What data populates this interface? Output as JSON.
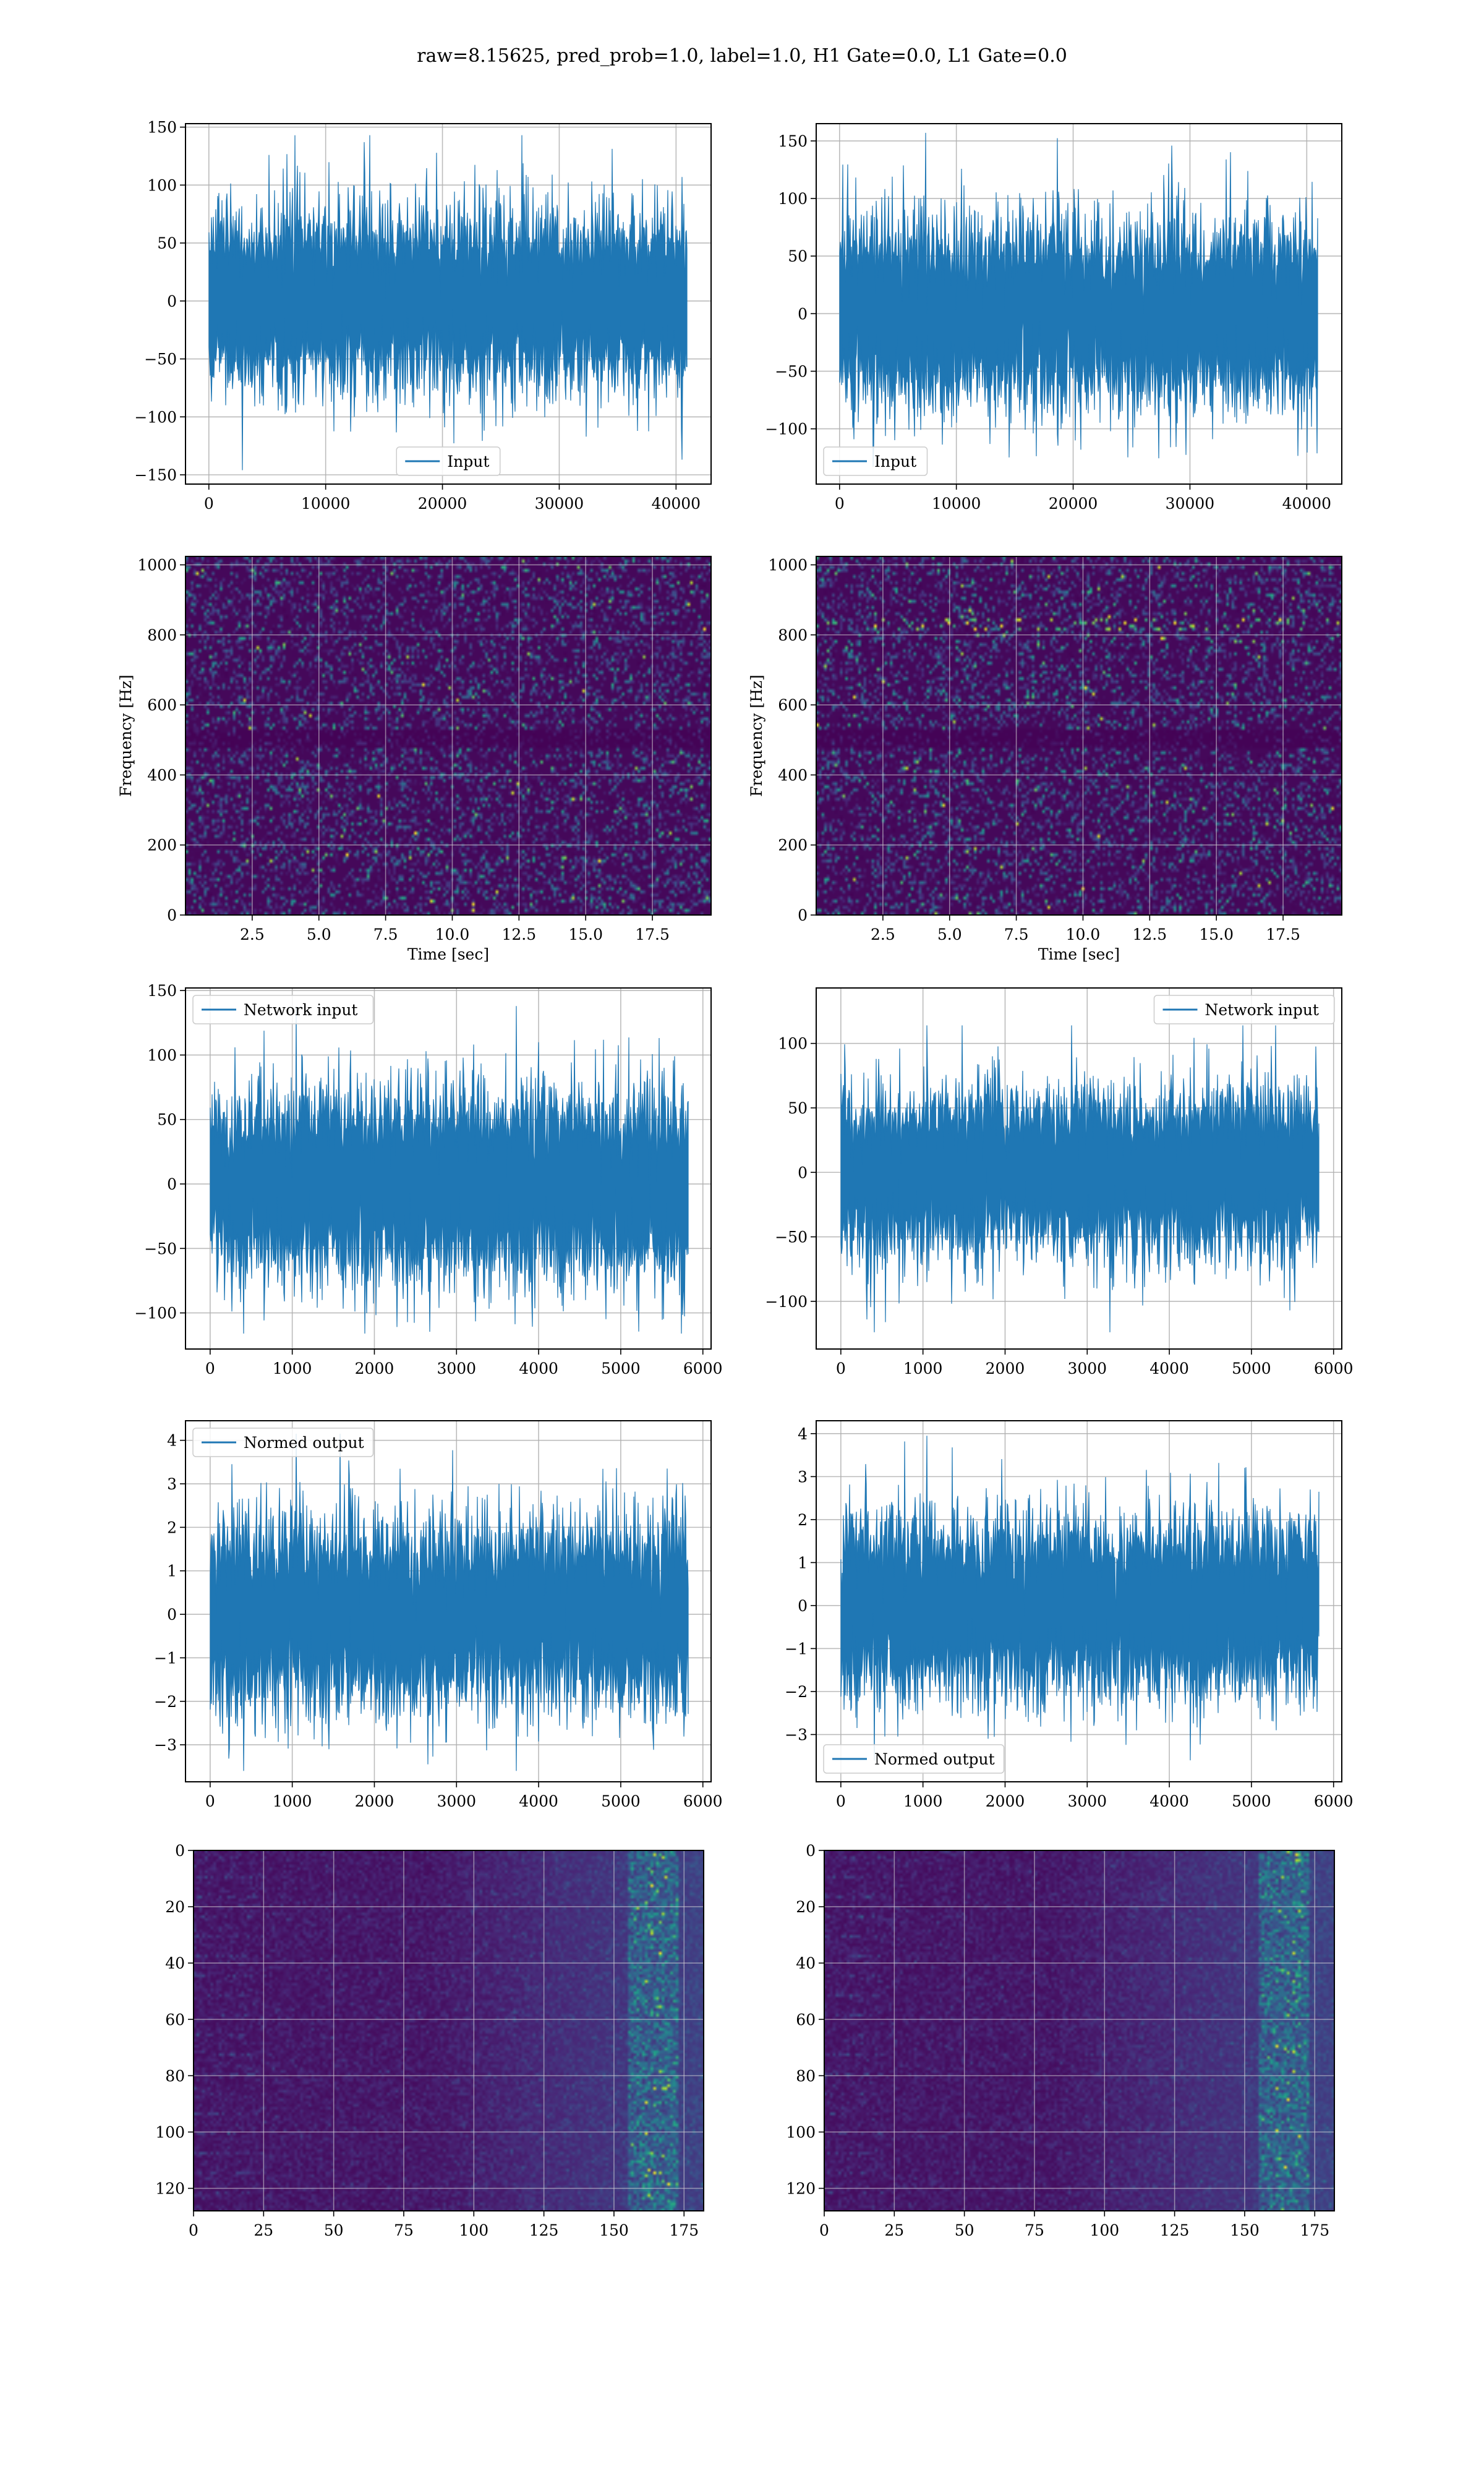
{
  "suptitle": "raw=8.15625, pred_prob=1.0, label=1.0, H1 Gate=0.0, L1 Gate=0.0",
  "colors": {
    "line": "#1f77b4",
    "viridis_low": "#440154",
    "viridis_mid": "#21918c",
    "viridis_high": "#fde725"
  },
  "chart_data": [
    {
      "id": "input-h1",
      "type": "line",
      "series": [
        {
          "name": "Input",
          "n_samples": 40960,
          "amplitude_range": [
            -146,
            143
          ]
        }
      ],
      "xlim": [
        -2000,
        43000
      ],
      "ylim": [
        -158,
        153
      ],
      "xticks": [
        0,
        10000,
        20000,
        30000,
        40000
      ],
      "xticklabels": [
        "0",
        "10000",
        "20000",
        "30000",
        "40000"
      ],
      "yticks": [
        -150,
        -100,
        -50,
        0,
        50,
        100,
        150
      ],
      "yticklabels": [
        "−150",
        "−100",
        "−50",
        "0",
        "50",
        "100",
        "150"
      ],
      "xlabel": "",
      "ylabel": "",
      "legend": "lower center",
      "grid": true
    },
    {
      "id": "input-l1",
      "type": "line",
      "series": [
        {
          "name": "Input",
          "n_samples": 40960,
          "amplitude_range": [
            -133,
            157
          ]
        }
      ],
      "xlim": [
        -2000,
        43000
      ],
      "ylim": [
        -148,
        165
      ],
      "xticks": [
        0,
        10000,
        20000,
        30000,
        40000
      ],
      "xticklabels": [
        "0",
        "10000",
        "20000",
        "30000",
        "40000"
      ],
      "yticks": [
        -100,
        -50,
        0,
        50,
        100,
        150
      ],
      "yticklabels": [
        "−100",
        "−50",
        "0",
        "50",
        "100",
        "150"
      ],
      "xlabel": "",
      "ylabel": "",
      "legend": "lower left",
      "grid": true
    },
    {
      "id": "spec-h1",
      "type": "heatmap",
      "colormap": "viridis",
      "xlim": [
        0,
        19.7
      ],
      "ylim": [
        0,
        1024
      ],
      "xticks": [
        2.5,
        5.0,
        7.5,
        10.0,
        12.5,
        15.0,
        17.5
      ],
      "xticklabels": [
        "2.5",
        "5.0",
        "7.5",
        "10.0",
        "12.5",
        "15.0",
        "17.5"
      ],
      "yticks": [
        0,
        200,
        400,
        600,
        800,
        1000
      ],
      "yticklabels": [
        "0",
        "200",
        "400",
        "600",
        "800",
        "1000"
      ],
      "xlabel": "Time [sec]",
      "ylabel": "Frequency [Hz]",
      "grid": true
    },
    {
      "id": "spec-l1",
      "type": "heatmap",
      "colormap": "viridis",
      "xlim": [
        0,
        19.7
      ],
      "ylim": [
        0,
        1024
      ],
      "xticks": [
        2.5,
        5.0,
        7.5,
        10.0,
        12.5,
        15.0,
        17.5
      ],
      "xticklabels": [
        "2.5",
        "5.0",
        "7.5",
        "10.0",
        "12.5",
        "15.0",
        "17.5"
      ],
      "yticks": [
        0,
        200,
        400,
        600,
        800,
        1000
      ],
      "yticklabels": [
        "0",
        "200",
        "400",
        "600",
        "800",
        "1000"
      ],
      "xlabel": "Time [sec]",
      "ylabel": "Frequency [Hz]",
      "grid": true
    },
    {
      "id": "netin-h1",
      "type": "line",
      "series": [
        {
          "name": "Network input",
          "n_samples": 5824,
          "amplitude_range": [
            -116,
            138
          ]
        }
      ],
      "xlim": [
        -300,
        6100
      ],
      "ylim": [
        -128,
        152
      ],
      "xticks": [
        0,
        1000,
        2000,
        3000,
        4000,
        5000,
        6000
      ],
      "xticklabels": [
        "0",
        "1000",
        "2000",
        "3000",
        "4000",
        "5000",
        "6000"
      ],
      "yticks": [
        -100,
        -50,
        0,
        50,
        100,
        150
      ],
      "yticklabels": [
        "−100",
        "−50",
        "0",
        "50",
        "100",
        "150"
      ],
      "xlabel": "",
      "ylabel": "",
      "legend": "upper left",
      "grid": true
    },
    {
      "id": "netin-l1",
      "type": "line",
      "series": [
        {
          "name": "Network input",
          "n_samples": 5824,
          "amplitude_range": [
            -124,
            114
          ]
        }
      ],
      "xlim": [
        -300,
        6100
      ],
      "ylim": [
        -137,
        143
      ],
      "xticks": [
        0,
        1000,
        2000,
        3000,
        4000,
        5000,
        6000
      ],
      "xticklabels": [
        "0",
        "1000",
        "2000",
        "3000",
        "4000",
        "5000",
        "6000"
      ],
      "yticks": [
        -100,
        -50,
        0,
        50,
        100
      ],
      "yticklabels": [
        "−100",
        "−50",
        "0",
        "50",
        "100"
      ],
      "xlabel": "",
      "ylabel": "",
      "legend": "upper right",
      "grid": true
    },
    {
      "id": "norm-h1",
      "type": "line",
      "series": [
        {
          "name": "Normed output",
          "n_samples": 5824,
          "amplitude_range": [
            -3.6,
            4.15
          ]
        }
      ],
      "xlim": [
        -300,
        6100
      ],
      "ylim": [
        -3.85,
        4.45
      ],
      "xticks": [
        0,
        1000,
        2000,
        3000,
        4000,
        5000,
        6000
      ],
      "xticklabels": [
        "0",
        "1000",
        "2000",
        "3000",
        "4000",
        "5000",
        "6000"
      ],
      "yticks": [
        -3,
        -2,
        -1,
        0,
        1,
        2,
        3,
        4
      ],
      "yticklabels": [
        "−3",
        "−2",
        "−1",
        "0",
        "1",
        "2",
        "3",
        "4"
      ],
      "xlabel": "",
      "ylabel": "",
      "legend": "upper left",
      "grid": true
    },
    {
      "id": "norm-l1",
      "type": "line",
      "series": [
        {
          "name": "Normed output",
          "n_samples": 5824,
          "amplitude_range": [
            -3.6,
            3.95
          ]
        }
      ],
      "xlim": [
        -300,
        6100
      ],
      "ylim": [
        -4.1,
        4.3
      ],
      "xticks": [
        0,
        1000,
        2000,
        3000,
        4000,
        5000,
        6000
      ],
      "xticklabels": [
        "0",
        "1000",
        "2000",
        "3000",
        "4000",
        "5000",
        "6000"
      ],
      "yticks": [
        -3,
        -2,
        -1,
        0,
        1,
        2,
        3,
        4
      ],
      "yticklabels": [
        "−3",
        "−2",
        "−1",
        "0",
        "1",
        "2",
        "3",
        "4"
      ],
      "xlabel": "",
      "ylabel": "",
      "legend": "lower left",
      "grid": true
    },
    {
      "id": "feat-h1",
      "type": "heatmap",
      "colormap": "viridis",
      "shape": [
        128,
        182
      ],
      "xlim": [
        0,
        182
      ],
      "ylim": [
        128,
        0
      ],
      "xticks": [
        0,
        25,
        50,
        75,
        100,
        125,
        150,
        175
      ],
      "xticklabels": [
        "0",
        "25",
        "50",
        "75",
        "100",
        "125",
        "150",
        "175"
      ],
      "yticks": [
        0,
        20,
        40,
        60,
        80,
        100,
        120
      ],
      "yticklabels": [
        "0",
        "20",
        "40",
        "60",
        "80",
        "100",
        "120"
      ],
      "xlabel": "",
      "ylabel": "",
      "grid": true
    },
    {
      "id": "feat-l1",
      "type": "heatmap",
      "colormap": "viridis",
      "shape": [
        128,
        182
      ],
      "xlim": [
        0,
        182
      ],
      "ylim": [
        128,
        0
      ],
      "xticks": [
        0,
        25,
        50,
        75,
        100,
        125,
        150,
        175
      ],
      "xticklabels": [
        "0",
        "25",
        "50",
        "75",
        "100",
        "125",
        "150",
        "175"
      ],
      "yticks": [
        0,
        20,
        40,
        60,
        80,
        100,
        120
      ],
      "yticklabels": [
        "0",
        "20",
        "40",
        "60",
        "80",
        "100",
        "120"
      ],
      "xlabel": "",
      "ylabel": "",
      "grid": true
    }
  ]
}
